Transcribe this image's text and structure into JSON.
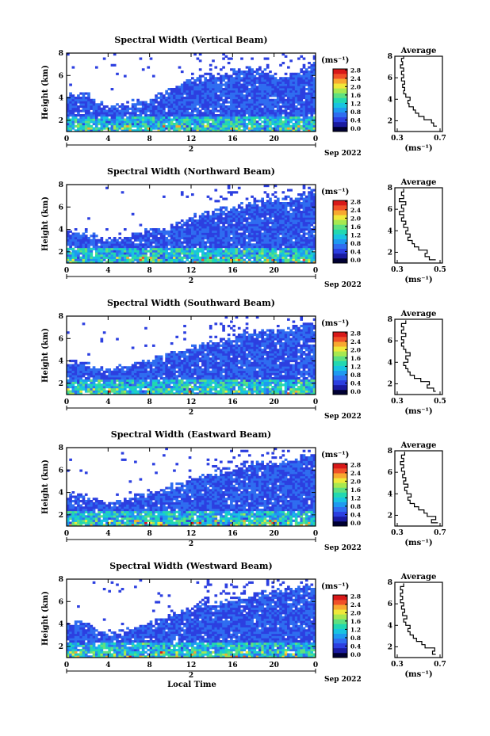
{
  "chart_data": [
    {
      "type": "heatmap",
      "title": "Spectral Width (Vertical Beam)",
      "ylabel": "Height (km)",
      "x_ticks": [
        "0",
        "4",
        "8",
        "12",
        "16",
        "20",
        "0"
      ],
      "y_ticks": [
        "2",
        "4",
        "6",
        "8"
      ],
      "ylim": [
        1,
        8
      ],
      "day_label": "2",
      "date_label": "Sep 2022",
      "cloud_top_km": [
        4.2,
        4.5,
        4.2,
        3.5,
        3.1,
        3.2,
        3.6,
        3.8,
        3.8,
        4.2,
        4.6,
        5.3,
        5.5,
        5.9,
        6.0,
        6.1,
        6.3,
        6.5,
        6.7,
        6.4,
        6.0,
        5.8,
        6.2,
        6.8,
        7.0
      ],
      "colorbar": {
        "unit": "(ms⁻¹)",
        "ticks": [
          "0.0",
          "0.4",
          "0.8",
          "1.2",
          "1.6",
          "2.0",
          "2.4",
          "2.8"
        ],
        "range": [
          0,
          3.0
        ]
      },
      "average": {
        "title": "Average",
        "x_ticks": [
          "0.3",
          "0.7"
        ],
        "xlim": [
          0.3,
          0.7
        ],
        "xlabel": "(ms⁻¹)",
        "profile": [
          [
            0.67,
            1.5
          ],
          [
            0.64,
            1.8
          ],
          [
            0.62,
            2.1
          ],
          [
            0.55,
            2.4
          ],
          [
            0.5,
            2.7
          ],
          [
            0.47,
            3.0
          ],
          [
            0.45,
            3.3
          ],
          [
            0.41,
            3.6
          ],
          [
            0.4,
            3.9
          ],
          [
            0.42,
            4.2
          ],
          [
            0.38,
            4.5
          ],
          [
            0.36,
            4.8
          ],
          [
            0.37,
            5.1
          ],
          [
            0.35,
            5.4
          ],
          [
            0.37,
            5.7
          ],
          [
            0.34,
            6.0
          ],
          [
            0.36,
            6.3
          ],
          [
            0.34,
            6.6
          ],
          [
            0.36,
            6.9
          ],
          [
            0.33,
            7.2
          ],
          [
            0.35,
            7.5
          ],
          [
            0.34,
            7.8
          ],
          [
            0.36,
            8.0
          ]
        ]
      }
    },
    {
      "type": "heatmap",
      "title": "Spectral Width (Northward Beam)",
      "ylabel": "Height (km)",
      "x_ticks": [
        "0",
        "4",
        "8",
        "12",
        "16",
        "20",
        "0"
      ],
      "y_ticks": [
        "2",
        "4",
        "6",
        "8"
      ],
      "ylim": [
        1,
        8
      ],
      "day_label": "2",
      "date_label": "Sep 2022",
      "cloud_top_km": [
        3.8,
        3.9,
        3.5,
        3.2,
        3.0,
        3.2,
        3.5,
        3.8,
        4.0,
        4.1,
        4.2,
        4.6,
        5.1,
        5.4,
        5.6,
        5.8,
        6.0,
        6.1,
        6.4,
        6.6,
        6.7,
        6.6,
        6.9,
        7.2,
        7.3
      ],
      "colorbar": {
        "unit": "(ms⁻¹)",
        "ticks": [
          "0.0",
          "0.4",
          "0.8",
          "1.2",
          "1.6",
          "2.0",
          "2.4",
          "2.8"
        ],
        "range": [
          0,
          3.0
        ]
      },
      "average": {
        "title": "Average",
        "x_ticks": [
          "0.3",
          "0.5"
        ],
        "xlim": [
          0.3,
          0.5
        ],
        "xlabel": "(ms⁻¹)",
        "profile": [
          [
            0.48,
            1.3
          ],
          [
            0.45,
            1.6
          ],
          [
            0.43,
            1.9
          ],
          [
            0.44,
            2.2
          ],
          [
            0.4,
            2.5
          ],
          [
            0.38,
            2.8
          ],
          [
            0.37,
            3.1
          ],
          [
            0.35,
            3.4
          ],
          [
            0.36,
            3.7
          ],
          [
            0.34,
            4.0
          ],
          [
            0.35,
            4.3
          ],
          [
            0.33,
            4.6
          ],
          [
            0.34,
            4.9
          ],
          [
            0.32,
            5.2
          ],
          [
            0.33,
            5.5
          ],
          [
            0.31,
            5.8
          ],
          [
            0.33,
            6.1
          ],
          [
            0.32,
            6.4
          ],
          [
            0.34,
            6.7
          ],
          [
            0.31,
            7.0
          ],
          [
            0.33,
            7.3
          ],
          [
            0.32,
            7.6
          ],
          [
            0.33,
            7.9
          ]
        ]
      }
    },
    {
      "type": "heatmap",
      "title": "Spectral Width (Southward Beam)",
      "ylabel": "Height (km)",
      "x_ticks": [
        "0",
        "4",
        "8",
        "12",
        "16",
        "20",
        "0"
      ],
      "y_ticks": [
        "2",
        "4",
        "6",
        "8"
      ],
      "ylim": [
        1,
        8
      ],
      "day_label": "2",
      "date_label": "Sep 2022",
      "cloud_top_km": [
        3.9,
        4.0,
        3.6,
        3.3,
        3.2,
        3.4,
        3.6,
        3.8,
        4.1,
        4.4,
        4.7,
        5.0,
        5.3,
        5.5,
        5.7,
        5.9,
        6.2,
        6.4,
        6.6,
        6.8,
        6.7,
        6.6,
        7.0,
        7.2,
        7.3
      ],
      "colorbar": {
        "unit": "(ms⁻¹)",
        "ticks": [
          "0.0",
          "0.4",
          "0.8",
          "1.2",
          "1.6",
          "2.0",
          "2.4",
          "2.8"
        ],
        "range": [
          0,
          3.0
        ]
      },
      "average": {
        "title": "Average",
        "x_ticks": [
          "0.3",
          "0.5"
        ],
        "xlim": [
          0.3,
          0.5
        ],
        "xlabel": "(ms⁻¹)",
        "profile": [
          [
            0.48,
            1.3
          ],
          [
            0.47,
            1.6
          ],
          [
            0.44,
            1.9
          ],
          [
            0.45,
            2.2
          ],
          [
            0.41,
            2.5
          ],
          [
            0.38,
            2.8
          ],
          [
            0.36,
            3.1
          ],
          [
            0.35,
            3.4
          ],
          [
            0.34,
            3.7
          ],
          [
            0.33,
            4.0
          ],
          [
            0.35,
            4.3
          ],
          [
            0.34,
            4.6
          ],
          [
            0.36,
            4.9
          ],
          [
            0.34,
            5.2
          ],
          [
            0.33,
            5.5
          ],
          [
            0.32,
            5.8
          ],
          [
            0.33,
            6.1
          ],
          [
            0.32,
            6.4
          ],
          [
            0.34,
            6.7
          ],
          [
            0.32,
            7.0
          ],
          [
            0.33,
            7.3
          ],
          [
            0.32,
            7.6
          ],
          [
            0.34,
            7.9
          ]
        ]
      }
    },
    {
      "type": "heatmap",
      "title": "Spectral Width (Eastward Beam)",
      "ylabel": "Height (km)",
      "x_ticks": [
        "0",
        "4",
        "8",
        "12",
        "16",
        "20",
        "0"
      ],
      "y_ticks": [
        "2",
        "4",
        "6",
        "8"
      ],
      "ylim": [
        1,
        8
      ],
      "day_label": "2",
      "date_label": "Sep 2022",
      "cloud_top_km": [
        3.8,
        3.9,
        3.6,
        3.2,
        3.0,
        3.2,
        3.5,
        3.8,
        4.0,
        4.2,
        4.5,
        4.9,
        5.2,
        5.4,
        5.7,
        5.9,
        6.1,
        6.3,
        6.6,
        6.7,
        6.6,
        6.8,
        7.0,
        7.2,
        7.3
      ],
      "colorbar": {
        "unit": "(ms⁻¹)",
        "ticks": [
          "0.0",
          "0.4",
          "0.8",
          "1.2",
          "1.6",
          "2.0",
          "2.4",
          "2.8"
        ],
        "range": [
          0,
          3.0
        ]
      },
      "average": {
        "title": "Average",
        "x_ticks": [
          "0.3",
          "0.7"
        ],
        "xlim": [
          0.3,
          0.7
        ],
        "xlabel": "(ms⁻¹)",
        "profile": [
          [
            0.68,
            1.3
          ],
          [
            0.62,
            1.6
          ],
          [
            0.66,
            1.9
          ],
          [
            0.58,
            2.2
          ],
          [
            0.55,
            2.5
          ],
          [
            0.5,
            2.8
          ],
          [
            0.46,
            3.1
          ],
          [
            0.42,
            3.4
          ],
          [
            0.4,
            3.7
          ],
          [
            0.43,
            4.0
          ],
          [
            0.39,
            4.3
          ],
          [
            0.37,
            4.6
          ],
          [
            0.4,
            4.9
          ],
          [
            0.36,
            5.2
          ],
          [
            0.38,
            5.5
          ],
          [
            0.35,
            5.8
          ],
          [
            0.37,
            6.1
          ],
          [
            0.34,
            6.4
          ],
          [
            0.36,
            6.7
          ],
          [
            0.33,
            7.0
          ],
          [
            0.36,
            7.3
          ],
          [
            0.34,
            7.6
          ],
          [
            0.37,
            7.9
          ]
        ]
      }
    },
    {
      "type": "heatmap",
      "title": "Spectral Width (Westward Beam)",
      "ylabel": "Height (km)",
      "x_ticks": [
        "0",
        "4",
        "8",
        "12",
        "16",
        "20",
        "0"
      ],
      "y_ticks": [
        "2",
        "4",
        "6",
        "8"
      ],
      "ylim": [
        1,
        8
      ],
      "day_label": "2",
      "date_label": "Sep 2022",
      "xlabel": "Local Time",
      "cloud_top_km": [
        4.0,
        4.2,
        3.8,
        3.4,
        3.2,
        3.3,
        3.6,
        3.8,
        4.1,
        4.5,
        4.8,
        5.1,
        5.4,
        5.6,
        5.8,
        6.0,
        6.2,
        6.4,
        6.7,
        6.8,
        6.9,
        7.0,
        7.1,
        7.3,
        7.4
      ],
      "colorbar": {
        "unit": "(ms⁻¹)",
        "ticks": [
          "0.0",
          "0.4",
          "0.8",
          "1.2",
          "1.6",
          "2.0",
          "2.4",
          "2.8"
        ],
        "range": [
          0,
          3.0
        ]
      },
      "average": {
        "title": "Average",
        "x_ticks": [
          "0.3",
          "0.7"
        ],
        "xlim": [
          0.3,
          0.7
        ],
        "xlabel": "(ms⁻¹)",
        "profile": [
          [
            0.66,
            1.3
          ],
          [
            0.63,
            1.6
          ],
          [
            0.65,
            1.9
          ],
          [
            0.56,
            2.2
          ],
          [
            0.53,
            2.5
          ],
          [
            0.48,
            2.8
          ],
          [
            0.45,
            3.1
          ],
          [
            0.42,
            3.4
          ],
          [
            0.4,
            3.7
          ],
          [
            0.42,
            4.0
          ],
          [
            0.38,
            4.3
          ],
          [
            0.36,
            4.6
          ],
          [
            0.39,
            4.9
          ],
          [
            0.35,
            5.2
          ],
          [
            0.37,
            5.5
          ],
          [
            0.34,
            5.8
          ],
          [
            0.36,
            6.1
          ],
          [
            0.33,
            6.4
          ],
          [
            0.35,
            6.7
          ],
          [
            0.33,
            7.0
          ],
          [
            0.35,
            7.3
          ],
          [
            0.33,
            7.6
          ],
          [
            0.36,
            7.9
          ]
        ]
      }
    }
  ],
  "colors": {
    "colormap": [
      "#000033",
      "#1a1aa0",
      "#2c3fe0",
      "#2f6df0",
      "#1e9af0",
      "#18c4e0",
      "#22d8b0",
      "#5ee080",
      "#a8e850",
      "#f0e83a",
      "#f8a830",
      "#f05028",
      "#d81818"
    ],
    "ink": "#000000"
  }
}
